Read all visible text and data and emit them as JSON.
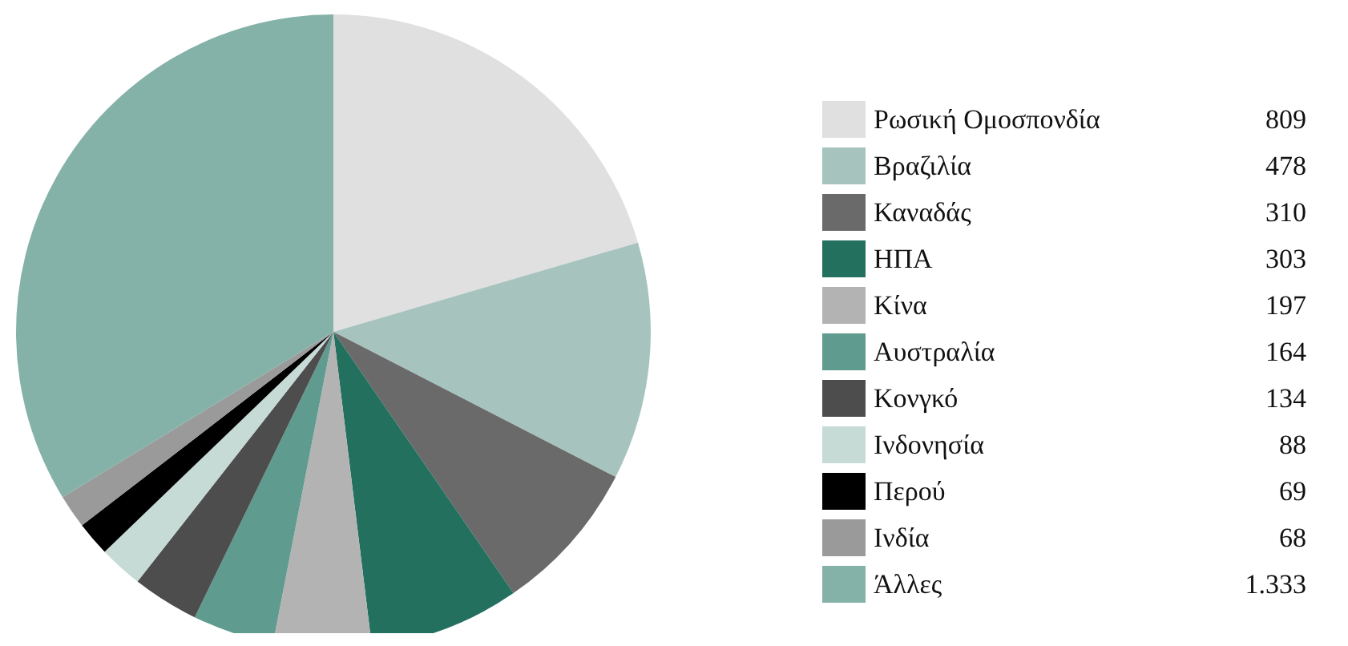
{
  "chart_data": {
    "type": "pie",
    "categories": [
      "Ρωσική Ομοσπονδία",
      "Βραζιλία",
      "Καναδάς",
      "ΗΠΑ",
      "Κίνα",
      "Αυστραλία",
      "Κονγκό",
      "Ινδονησία",
      "Περού",
      "Ινδία",
      "Άλλες"
    ],
    "values": [
      809,
      478,
      310,
      303,
      197,
      164,
      134,
      88,
      69,
      68,
      1333
    ],
    "value_labels": [
      "809",
      "478",
      "310",
      "303",
      "197",
      "164",
      "134",
      "88",
      "69",
      "68",
      "1.333"
    ],
    "colors": [
      "#e0e0e0",
      "#a6c4bd",
      "#6a6a6a",
      "#23705f",
      "#b3b3b3",
      "#5f9b8e",
      "#4d4d4d",
      "#c6dbd6",
      "#000000",
      "#9a9a9a",
      "#85b2a8"
    ],
    "legend": "right"
  }
}
